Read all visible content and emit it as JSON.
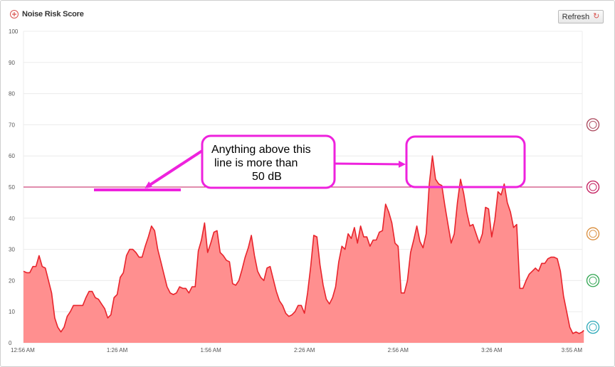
{
  "header": {
    "title": "Noise Risk Score",
    "refresh_label": "Refresh"
  },
  "colors": {
    "series_fill": "#ff8f8f",
    "series_line": "#e8242c",
    "threshold": "#c2185b",
    "annotation": "#ee22dd"
  },
  "zone_icons": [
    {
      "name": "explosion-zone-icon",
      "level": 70,
      "color": "#a94459"
    },
    {
      "name": "hands-zone-icon",
      "level": 50,
      "color": "#c2185b"
    },
    {
      "name": "tv-zone-icon",
      "level": 35,
      "color": "#d98c3a"
    },
    {
      "name": "speech-zone-icon",
      "level": 20,
      "color": "#2ea44f"
    },
    {
      "name": "sleep-zone-icon",
      "level": 5,
      "color": "#2aa8b8"
    }
  ],
  "annotation": {
    "lines": [
      "Anything above this",
      "line is more than",
      "50 dB"
    ]
  },
  "chart_data": {
    "type": "area",
    "title": "Noise Risk Score",
    "ylim": [
      0,
      100
    ],
    "y_ticks": [
      0,
      10,
      20,
      30,
      40,
      50,
      60,
      70,
      80,
      90,
      100
    ],
    "x_range_minutes": [
      0,
      179
    ],
    "x_tick_labels": [
      {
        "label": "12:56 AM",
        "minute": 0
      },
      {
        "label": "1:26 AM",
        "minute": 30
      },
      {
        "label": "1:56 AM",
        "minute": 60
      },
      {
        "label": "2:26 AM",
        "minute": 90
      },
      {
        "label": "2:56 AM",
        "minute": 120
      },
      {
        "label": "3:26 AM",
        "minute": 150
      },
      {
        "label": "3:55 AM",
        "minute": 179
      }
    ],
    "threshold": 50,
    "grid": true,
    "series": [
      {
        "values": [
          [
            0,
            23
          ],
          [
            1,
            22.5
          ],
          [
            2,
            22.5
          ],
          [
            3,
            24.5
          ],
          [
            4,
            24.5
          ],
          [
            5,
            28
          ],
          [
            6,
            24.5
          ],
          [
            7,
            24
          ],
          [
            8,
            20
          ],
          [
            9,
            16
          ],
          [
            10,
            8
          ],
          [
            11,
            5
          ],
          [
            12,
            3.5
          ],
          [
            13,
            5
          ],
          [
            14,
            8.5
          ],
          [
            15,
            10
          ],
          [
            16,
            12
          ],
          [
            17,
            12
          ],
          [
            18,
            12
          ],
          [
            19,
            12
          ],
          [
            20,
            14.5
          ],
          [
            21,
            16.5
          ],
          [
            22,
            16.5
          ],
          [
            23,
            14.5
          ],
          [
            24,
            14
          ],
          [
            25,
            12.5
          ],
          [
            26,
            11
          ],
          [
            27,
            8
          ],
          [
            28,
            9
          ],
          [
            29,
            14.5
          ],
          [
            30,
            15.5
          ],
          [
            31,
            21
          ],
          [
            32,
            22.5
          ],
          [
            33,
            28
          ],
          [
            34,
            30
          ],
          [
            35,
            30
          ],
          [
            36,
            29
          ],
          [
            37,
            27.5
          ],
          [
            38,
            27.5
          ],
          [
            39,
            31
          ],
          [
            40,
            34
          ],
          [
            41,
            37.5
          ],
          [
            42,
            36
          ],
          [
            43,
            30
          ],
          [
            44,
            26
          ],
          [
            45,
            22
          ],
          [
            46,
            18
          ],
          [
            47,
            16
          ],
          [
            48,
            15.5
          ],
          [
            49,
            16
          ],
          [
            50,
            18
          ],
          [
            51,
            17.5
          ],
          [
            52,
            17.5
          ],
          [
            53,
            16
          ],
          [
            54,
            18
          ],
          [
            55,
            18
          ],
          [
            56,
            29.5
          ],
          [
            57,
            33
          ],
          [
            58,
            38.5
          ],
          [
            59,
            29
          ],
          [
            60,
            32
          ],
          [
            61,
            35.5
          ],
          [
            62,
            36
          ],
          [
            63,
            29
          ],
          [
            64,
            28
          ],
          [
            65,
            26.5
          ],
          [
            66,
            26
          ],
          [
            67,
            19
          ],
          [
            68,
            18.5
          ],
          [
            69,
            20
          ],
          [
            70,
            23.5
          ],
          [
            71,
            27.5
          ],
          [
            72,
            30.5
          ],
          [
            73,
            34.5
          ],
          [
            74,
            28
          ],
          [
            75,
            23
          ],
          [
            76,
            21
          ],
          [
            77,
            20
          ],
          [
            78,
            24
          ],
          [
            79,
            24.5
          ],
          [
            80,
            20.5
          ],
          [
            81,
            16.5
          ],
          [
            82,
            13.5
          ],
          [
            83,
            12
          ],
          [
            84,
            9.5
          ],
          [
            85,
            8.5
          ],
          [
            86,
            9
          ],
          [
            87,
            10
          ],
          [
            88,
            12
          ],
          [
            89,
            12
          ],
          [
            90,
            9.5
          ],
          [
            91,
            16
          ],
          [
            92,
            24.5
          ],
          [
            93,
            34.5
          ],
          [
            94,
            34
          ],
          [
            95,
            25
          ],
          [
            96,
            18.5
          ],
          [
            97,
            14
          ],
          [
            98,
            12.5
          ],
          [
            99,
            14.5
          ],
          [
            100,
            18
          ],
          [
            101,
            26
          ],
          [
            102,
            31
          ],
          [
            103,
            30
          ],
          [
            104,
            35
          ],
          [
            105,
            33.5
          ],
          [
            106,
            37
          ],
          [
            107,
            32
          ],
          [
            108,
            37.5
          ],
          [
            109,
            34
          ],
          [
            110,
            34
          ],
          [
            111,
            31
          ],
          [
            112,
            33
          ],
          [
            113,
            33
          ],
          [
            114,
            35.5
          ],
          [
            115,
            36
          ],
          [
            116,
            44.5
          ],
          [
            117,
            42
          ],
          [
            118,
            38.5
          ],
          [
            119,
            32
          ],
          [
            120,
            31
          ],
          [
            121,
            16
          ],
          [
            122,
            16
          ],
          [
            123,
            20
          ],
          [
            124,
            29
          ],
          [
            125,
            33
          ],
          [
            126,
            37.5
          ],
          [
            127,
            32.5
          ],
          [
            128,
            30.5
          ],
          [
            129,
            35
          ],
          [
            130,
            51
          ],
          [
            131,
            60
          ],
          [
            132,
            52.5
          ],
          [
            133,
            51
          ],
          [
            134,
            50.5
          ],
          [
            135,
            44
          ],
          [
            136,
            38
          ],
          [
            137,
            32
          ],
          [
            138,
            35
          ],
          [
            139,
            45
          ],
          [
            140,
            52.5
          ],
          [
            141,
            48
          ],
          [
            142,
            42
          ],
          [
            143,
            37.5
          ],
          [
            144,
            38
          ],
          [
            145,
            35
          ],
          [
            146,
            32
          ],
          [
            147,
            35
          ],
          [
            148,
            43.5
          ],
          [
            149,
            43
          ],
          [
            150,
            34
          ],
          [
            151,
            39.5
          ],
          [
            152,
            48.5
          ],
          [
            153,
            47.5
          ],
          [
            154,
            51
          ],
          [
            155,
            45
          ],
          [
            156,
            42
          ],
          [
            157,
            37
          ],
          [
            158,
            38
          ],
          [
            159,
            17.5
          ],
          [
            160,
            17.5
          ],
          [
            161,
            20
          ],
          [
            162,
            22
          ],
          [
            163,
            23
          ],
          [
            164,
            24
          ],
          [
            165,
            23
          ],
          [
            166,
            25.5
          ],
          [
            167,
            25.5
          ],
          [
            168,
            27
          ],
          [
            169,
            27.5
          ],
          [
            170,
            27.5
          ],
          [
            171,
            27
          ],
          [
            172,
            23
          ],
          [
            173,
            15
          ],
          [
            174,
            10
          ],
          [
            175,
            5
          ],
          [
            176,
            3
          ],
          [
            177,
            3.5
          ],
          [
            178,
            3
          ],
          [
            179,
            3.5
          ],
          [
            179.5,
            4
          ]
        ]
      }
    ]
  }
}
